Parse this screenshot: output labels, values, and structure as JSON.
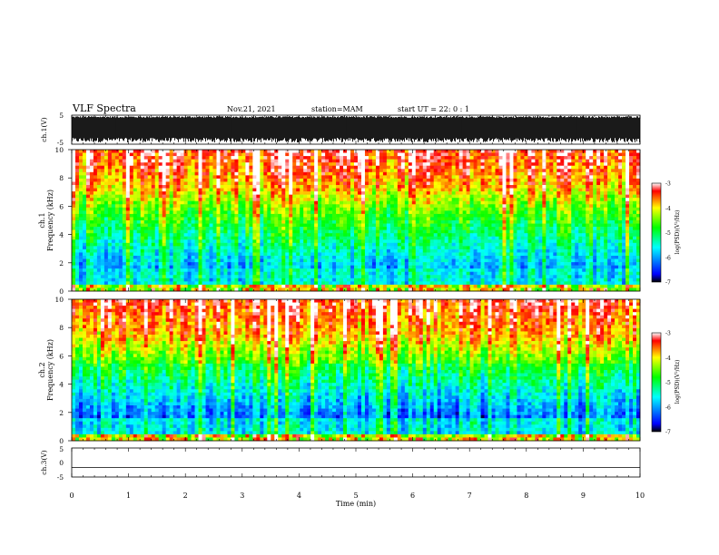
{
  "header": {
    "title": "VLF Spectra",
    "date": "Nov.21, 2021",
    "station": "station=MAM",
    "start": "start  UT  =   22: 0  : 1"
  },
  "chart_data": [
    {
      "type": "line",
      "panel": "ch1-waveform",
      "ylabel": "ch.1(V)",
      "ylim": [
        -5,
        5
      ],
      "yticks": [
        "5",
        "-5"
      ],
      "xlim": [
        0,
        10
      ],
      "description_values": "dense broadband waveform, amplitude near full scale (about -4 to +5 V)"
    },
    {
      "type": "heatmap",
      "panel": "ch1-spectrogram",
      "ylabel_line1": "ch.1",
      "ylabel_line2": "Frequency  (kHz)",
      "ylim": [
        0,
        10
      ],
      "yticks": [
        "0",
        "2",
        "4",
        "6",
        "8",
        "10"
      ],
      "xlim": [
        0,
        10
      ],
      "colorbar": {
        "label": "log(PSD)(V²/Hz)",
        "range": [
          -7,
          -3
        ],
        "ticks": [
          "-3",
          "-4",
          "-5",
          "-6",
          "-7"
        ]
      }
    },
    {
      "type": "heatmap",
      "panel": "ch2-spectrogram",
      "ylabel_line1": "ch.2",
      "ylabel_line2": "Frequency  (kHz)",
      "ylim": [
        0,
        10
      ],
      "yticks": [
        "0",
        "2",
        "4",
        "6",
        "8",
        "10"
      ],
      "xlim": [
        0,
        10
      ],
      "colorbar": {
        "label": "log(PSD)(V²/Hz)",
        "range": [
          -7,
          -3
        ],
        "ticks": [
          "-3",
          "-4",
          "-5",
          "-6",
          "-7"
        ]
      }
    },
    {
      "type": "line",
      "panel": "ch3-waveform",
      "ylabel": "ch.3(V)",
      "ylim": [
        -5,
        5
      ],
      "yticks": [
        "5",
        "0",
        "-5"
      ],
      "xlim": [
        0,
        10
      ],
      "xlabel": "Time  (min)",
      "xticks": [
        "0",
        "1",
        "2",
        "3",
        "4",
        "5",
        "6",
        "7",
        "8",
        "9",
        "10"
      ],
      "series": [
        {
          "values_x": [
            0,
            10
          ],
          "values_y": [
            -1.7,
            -1.7
          ]
        }
      ]
    }
  ]
}
